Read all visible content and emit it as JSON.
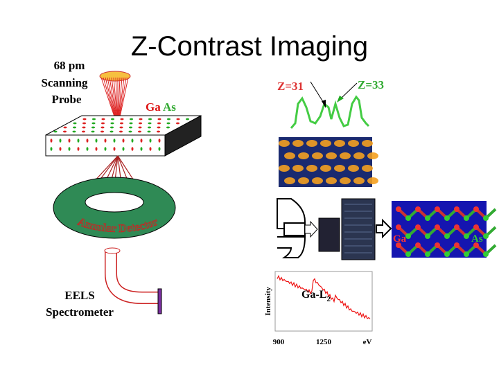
{
  "title": "Z-Contrast Imaging",
  "probe": {
    "lines": [
      "68 pm",
      "Scanning",
      "Probe"
    ]
  },
  "sample": {
    "ga": "Ga",
    "as": "As"
  },
  "detector": {
    "label": "Annular Detector"
  },
  "eels": {
    "lines": [
      "EELS",
      "Spectrometer"
    ]
  },
  "linescan": {
    "left": "Z=31",
    "right": "Z=33"
  },
  "model": {
    "ga": "Ga",
    "as": "As"
  },
  "spectrum": {
    "y_label": "Intensity",
    "edge": "Ga-L",
    "edge_sub": "2",
    "x_labels": [
      "900",
      "1250",
      "eV"
    ]
  }
}
